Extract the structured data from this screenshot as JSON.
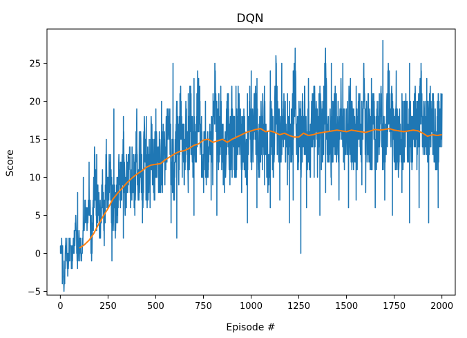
{
  "chart_data": {
    "type": "line",
    "title": "DQN",
    "xlabel": "Episode #",
    "ylabel": "Score",
    "xlim": [
      -70,
      2070
    ],
    "ylim": [
      -5.5,
      29.5
    ],
    "grid": false,
    "xticks": [
      0,
      250,
      500,
      750,
      1000,
      1250,
      1500,
      1750,
      2000
    ],
    "yticks": [
      -5,
      0,
      5,
      10,
      15,
      20,
      25
    ],
    "series": [
      {
        "kind": "raw_scores",
        "color": "#1f77b4",
        "x_start": 0,
        "x_step": 10,
        "values": [
          0,
          1,
          -4,
          1,
          -2,
          1,
          -1,
          1,
          4,
          -1,
          2,
          0,
          2,
          6,
          4,
          7,
          2,
          3,
          12,
          5,
          8,
          3,
          10,
          4,
          11,
          7,
          12,
          6,
          7,
          5,
          9,
          10,
          8,
          15,
          6,
          11,
          13,
          9,
          12,
          8,
          15,
          10,
          14,
          7,
          15,
          11,
          10,
          13,
          14,
          9,
          14,
          12,
          12,
          11,
          13,
          14,
          15,
          16,
          13,
          11,
          9,
          17,
          12,
          18,
          14,
          13,
          16,
          11,
          19,
          15,
          14,
          12,
          21,
          16,
          15,
          12,
          13,
          11,
          17,
          14,
          13,
          21,
          16,
          15,
          18,
          14,
          12,
          16,
          17,
          13,
          19,
          14,
          12,
          18,
          16,
          14,
          17,
          13,
          12,
          20,
          15,
          14,
          18,
          17,
          12,
          16,
          14,
          19,
          15,
          11,
          17,
          16,
          13,
          22,
          15,
          14,
          17,
          18,
          16,
          13,
          16,
          15,
          17,
          24,
          14,
          16,
          13,
          17,
          18,
          15,
          16,
          14,
          17,
          19,
          16,
          14,
          18,
          15,
          17,
          23,
          16,
          15,
          14,
          17,
          18,
          16,
          15,
          19,
          17,
          14,
          16,
          18,
          17,
          15,
          16,
          14,
          17,
          18,
          16,
          22,
          15,
          17,
          16,
          14,
          18,
          15,
          16,
          17,
          19,
          14,
          15,
          16,
          22,
          17,
          18,
          15,
          16,
          14,
          17,
          16,
          15,
          18,
          16,
          17,
          14,
          16,
          18,
          15,
          17,
          21,
          16,
          17,
          15,
          16,
          18,
          17,
          16,
          15,
          16,
          17
        ],
        "min_points": [
          [
            10,
            -4
          ],
          [
            40,
            -2
          ],
          [
            100,
            -1
          ],
          [
            160,
            0
          ],
          [
            210,
            2
          ],
          [
            270,
            -1
          ],
          [
            300,
            4
          ],
          [
            330,
            2
          ],
          [
            390,
            5
          ],
          [
            430,
            4
          ],
          [
            470,
            6
          ],
          [
            520,
            8
          ],
          [
            580,
            4
          ],
          [
            610,
            2
          ],
          [
            670,
            8
          ],
          [
            700,
            5
          ],
          [
            740,
            10
          ],
          [
            790,
            7
          ],
          [
            820,
            5
          ],
          [
            860,
            8
          ],
          [
            900,
            10
          ],
          [
            950,
            8
          ],
          [
            980,
            4
          ],
          [
            1030,
            6
          ],
          [
            1070,
            9
          ],
          [
            1100,
            6
          ],
          [
            1150,
            7
          ],
          [
            1200,
            4
          ],
          [
            1220,
            7
          ],
          [
            1260,
            0
          ],
          [
            1290,
            6
          ],
          [
            1330,
            10
          ],
          [
            1360,
            5
          ],
          [
            1390,
            8
          ],
          [
            1420,
            9
          ],
          [
            1460,
            7
          ],
          [
            1510,
            6
          ],
          [
            1550,
            7
          ],
          [
            1580,
            9
          ],
          [
            1600,
            8
          ],
          [
            1650,
            6
          ],
          [
            1700,
            7
          ],
          [
            1740,
            5
          ],
          [
            1790,
            8
          ],
          [
            1830,
            4
          ],
          [
            1880,
            6
          ],
          [
            1930,
            4
          ],
          [
            1980,
            6
          ]
        ],
        "max_points": [
          [
            0,
            1
          ],
          [
            40,
            2
          ],
          [
            90,
            8
          ],
          [
            120,
            10
          ],
          [
            150,
            12
          ],
          [
            190,
            13
          ],
          [
            240,
            15
          ],
          [
            280,
            19
          ],
          [
            330,
            18
          ],
          [
            400,
            19
          ],
          [
            450,
            18
          ],
          [
            500,
            19
          ],
          [
            530,
            20
          ],
          [
            590,
            25
          ],
          [
            630,
            22
          ],
          [
            670,
            21
          ],
          [
            700,
            23
          ],
          [
            730,
            22
          ],
          [
            760,
            20
          ],
          [
            800,
            21
          ],
          [
            830,
            21
          ],
          [
            880,
            21
          ],
          [
            920,
            22
          ],
          [
            980,
            21
          ],
          [
            1000,
            24
          ],
          [
            1030,
            23
          ],
          [
            1060,
            21
          ],
          [
            1100,
            24
          ],
          [
            1160,
            25
          ],
          [
            1190,
            21
          ],
          [
            1220,
            24
          ],
          [
            1260,
            20
          ],
          [
            1300,
            23
          ],
          [
            1330,
            21
          ],
          [
            1360,
            22
          ],
          [
            1390,
            23
          ],
          [
            1420,
            25
          ],
          [
            1440,
            22
          ],
          [
            1480,
            25
          ],
          [
            1520,
            23
          ],
          [
            1550,
            22
          ],
          [
            1590,
            25
          ],
          [
            1630,
            23
          ],
          [
            1690,
            28
          ],
          [
            1720,
            22
          ],
          [
            1760,
            24
          ],
          [
            1790,
            21
          ],
          [
            1830,
            25
          ],
          [
            1860,
            21
          ],
          [
            1890,
            25
          ],
          [
            1920,
            23
          ],
          [
            1950,
            21
          ],
          [
            1980,
            21
          ],
          [
            2000,
            21
          ]
        ]
      },
      {
        "kind": "moving_average",
        "color": "#ff7f0e",
        "x": [
          100,
          125,
          150,
          175,
          200,
          225,
          250,
          275,
          300,
          325,
          350,
          375,
          400,
          425,
          450,
          475,
          500,
          525,
          550,
          575,
          600,
          625,
          650,
          675,
          700,
          725,
          750,
          775,
          800,
          825,
          850,
          875,
          900,
          925,
          950,
          975,
          1000,
          1025,
          1050,
          1075,
          1100,
          1125,
          1150,
          1175,
          1200,
          1225,
          1250,
          1275,
          1300,
          1325,
          1350,
          1375,
          1400,
          1425,
          1450,
          1475,
          1500,
          1525,
          1550,
          1575,
          1600,
          1625,
          1650,
          1675,
          1700,
          1725,
          1750,
          1775,
          1800,
          1825,
          1850,
          1875,
          1900,
          1925,
          1950,
          1975,
          2000
        ],
        "values": [
          0.7,
          1.1,
          1.7,
          2.6,
          3.8,
          4.9,
          5.9,
          7.1,
          7.9,
          8.6,
          9.3,
          9.9,
          10.4,
          10.8,
          11.3,
          11.6,
          11.7,
          11.8,
          12.3,
          12.7,
          13.1,
          13.4,
          13.5,
          13.8,
          14.2,
          14.4,
          14.9,
          15.0,
          14.6,
          14.8,
          15.0,
          14.6,
          15.0,
          15.3,
          15.6,
          15.9,
          16.1,
          16.3,
          16.4,
          16.0,
          16.1,
          15.9,
          15.6,
          15.8,
          15.5,
          15.3,
          15.3,
          15.8,
          15.5,
          15.6,
          15.8,
          15.9,
          16.0,
          16.1,
          16.2,
          16.1,
          16.0,
          16.2,
          16.1,
          16.0,
          15.9,
          16.1,
          16.3,
          16.2,
          16.3,
          16.4,
          16.2,
          16.1,
          16.0,
          16.1,
          16.2,
          16.1,
          15.8,
          15.4,
          15.6,
          15.5,
          15.6
        ]
      }
    ]
  }
}
